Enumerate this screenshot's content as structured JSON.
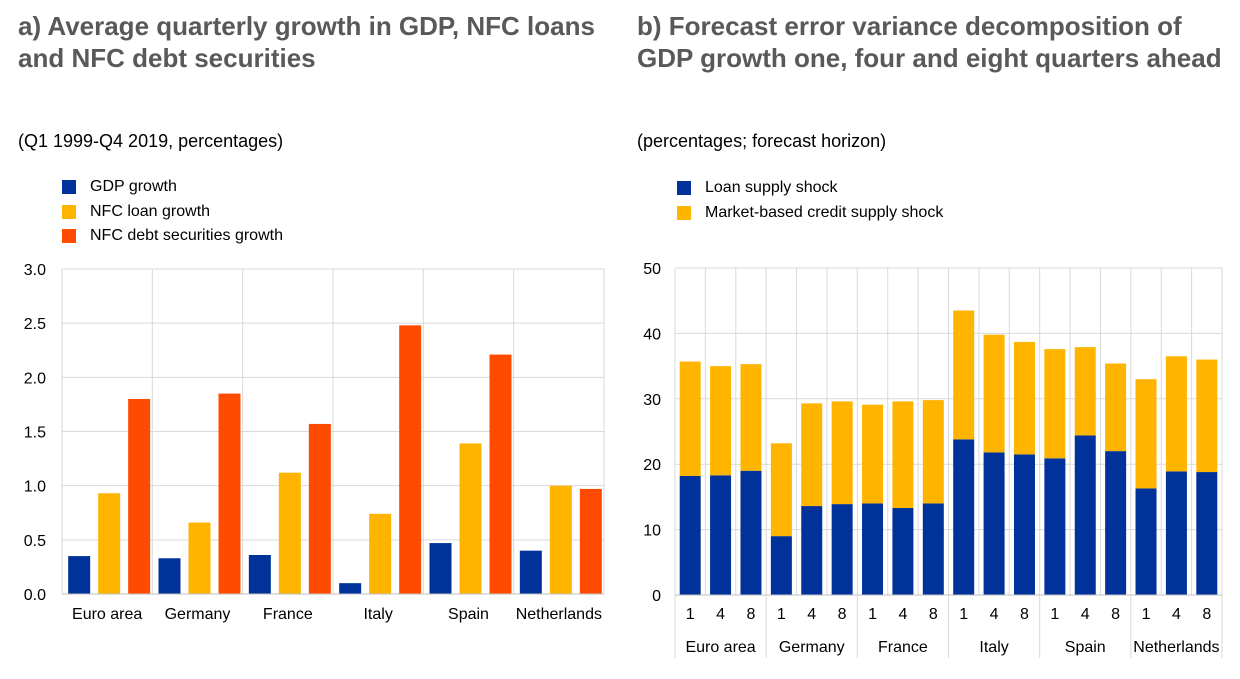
{
  "colors": {
    "blue": "#003299",
    "yellow": "#ffb400",
    "orange": "#ff4b00",
    "grid": "#d9d9d9"
  },
  "chart_data": [
    {
      "type": "bar",
      "title": "a) Average quarterly growth in GDP, NFC loans and NFC debt securities",
      "subtitle": "(Q1 1999-Q4 2019, percentages)",
      "categories": [
        "Euro area",
        "Germany",
        "France",
        "Italy",
        "Spain",
        "Netherlands"
      ],
      "series": [
        {
          "name": "GDP growth",
          "color": "#003299",
          "values": [
            0.35,
            0.33,
            0.36,
            0.1,
            0.47,
            0.4
          ]
        },
        {
          "name": "NFC loan growth",
          "color": "#ffb400",
          "values": [
            0.93,
            0.66,
            1.12,
            0.74,
            1.39,
            1.0
          ]
        },
        {
          "name": "NFC debt securities growth",
          "color": "#ff4b00",
          "values": [
            1.8,
            1.85,
            1.57,
            2.48,
            2.21,
            0.97
          ]
        }
      ],
      "ylim": [
        0,
        3
      ],
      "yticks": [
        "0.0",
        "0.5",
        "1.0",
        "1.5",
        "2.0",
        "2.5",
        "3.0"
      ],
      "grid": true,
      "legend_position": "top-left"
    },
    {
      "type": "bar",
      "stacked": true,
      "title": "b) Forecast error variance decomposition of GDP growth one, four and eight quarters ahead",
      "subtitle": "(percentages; forecast horizon)",
      "groups": [
        "Euro area",
        "Germany",
        "France",
        "Italy",
        "Spain",
        "Netherlands"
      ],
      "horizons": [
        "1",
        "4",
        "8"
      ],
      "series": [
        {
          "name": "Loan supply shock",
          "color": "#003299",
          "values": [
            18.2,
            18.3,
            19.0,
            9.0,
            13.6,
            13.9,
            14.0,
            13.3,
            14.0,
            23.8,
            21.8,
            21.5,
            20.9,
            24.4,
            22.0,
            16.3,
            18.9,
            18.8
          ]
        },
        {
          "name": "Market-based credit supply shock",
          "color": "#ffb400",
          "values": [
            17.5,
            16.7,
            16.3,
            14.2,
            15.7,
            15.7,
            15.1,
            16.3,
            15.8,
            19.7,
            18.0,
            17.2,
            16.7,
            13.5,
            13.4,
            16.7,
            17.6,
            17.2
          ]
        }
      ],
      "ylim": [
        0,
        50
      ],
      "yticks": [
        "0",
        "10",
        "20",
        "30",
        "40",
        "50"
      ],
      "grid": true,
      "legend_position": "top-left"
    }
  ]
}
